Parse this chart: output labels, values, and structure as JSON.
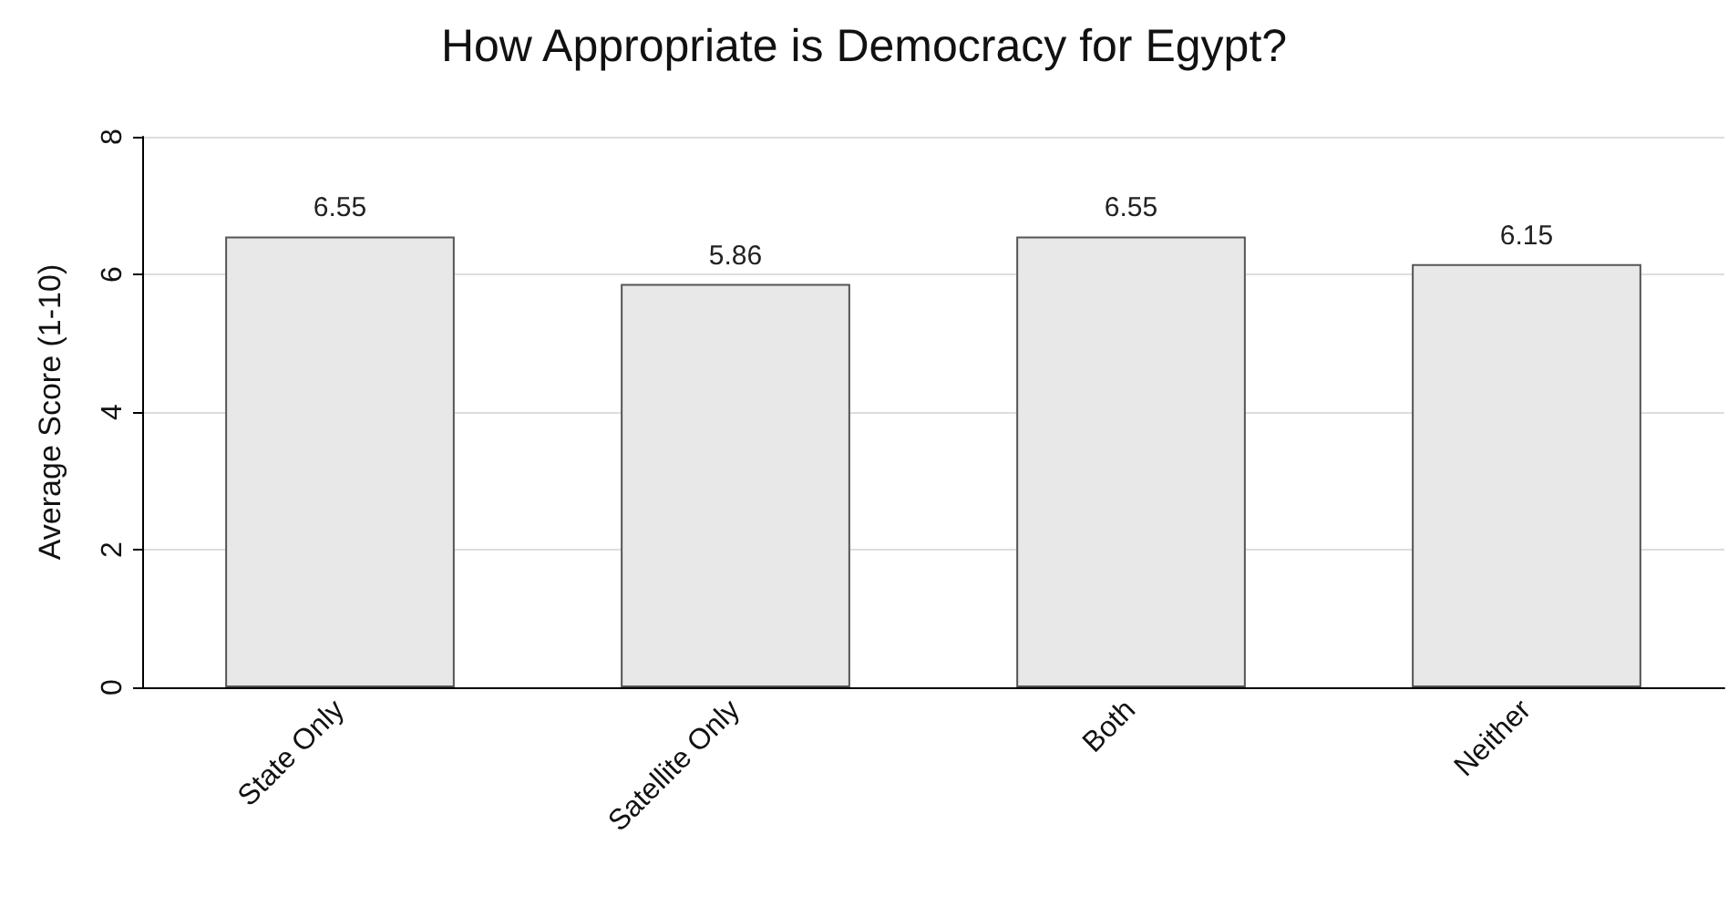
{
  "chart_data": {
    "type": "bar",
    "title": "How Appropriate is Democracy for Egypt?",
    "ylabel": "Average Score (1-10)",
    "categories": [
      "State Only",
      "Satellite Only",
      "Both",
      "Neither"
    ],
    "values": [
      6.55,
      5.86,
      6.55,
      6.15
    ],
    "color": "#e8e8e8",
    "ylim": [
      0,
      8
    ],
    "yticks": [
      0,
      2,
      4,
      6,
      8
    ],
    "grid": "y",
    "data_labels": true
  }
}
